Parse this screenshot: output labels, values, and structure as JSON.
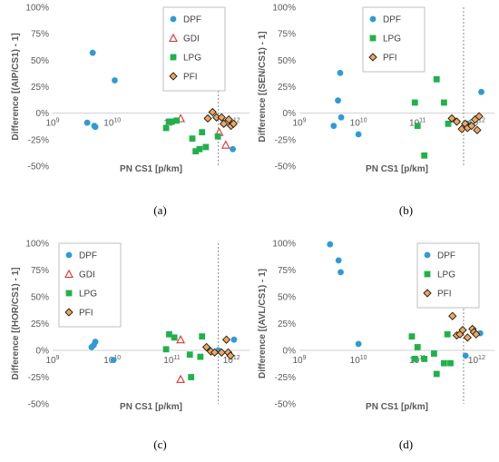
{
  "chart_data": [
    {
      "type": "scatter",
      "panel_label": "(a)",
      "xlabel": "PN CS1 [p/km]",
      "ylabel": "Difference [(AIP/CS1) - 1]",
      "xscale": "log",
      "xlim": [
        1000000000,
        2000000000000
      ],
      "ylim": [
        -0.5,
        1.0
      ],
      "yticks": [
        "100%",
        "75%",
        "50%",
        "25%",
        "0%",
        "-25%",
        "-50%"
      ],
      "xticks": [
        {
          "base": "10",
          "exp": "9"
        },
        {
          "base": "10",
          "exp": "10"
        },
        {
          "base": "10",
          "exp": "11"
        },
        {
          "base": "10",
          "exp": "12"
        }
      ],
      "vline_x": 600000000000,
      "legend_position": "top-center",
      "series": [
        {
          "name": "DPF",
          "marker": "circle",
          "color": "#2e9bd6",
          "x": [
            3800000000,
            4700000000,
            5000000000,
            5200000000,
            11000000000,
            1050000000000
          ],
          "y": [
            -0.09,
            0.57,
            -0.12,
            -0.13,
            0.31,
            -0.34
          ]
        },
        {
          "name": "GDI",
          "marker": "triangle",
          "color": "#e03030",
          "x": [
            140000000000,
            620000000000,
            800000000000
          ],
          "y": [
            -0.05,
            -0.18,
            -0.3
          ]
        },
        {
          "name": "LPG",
          "marker": "square",
          "color": "#1fb24a",
          "x": [
            80000000000,
            90000000000,
            100000000000,
            120000000000,
            220000000000,
            250000000000,
            290000000000,
            320000000000,
            370000000000,
            590000000000
          ],
          "y": [
            -0.14,
            -0.08,
            -0.08,
            -0.07,
            -0.24,
            -0.36,
            -0.34,
            -0.18,
            -0.32,
            -0.22
          ]
        },
        {
          "name": "PFI",
          "marker": "diamond",
          "color": "#7a4a12",
          "x": [
            400000000000,
            480000000000,
            560000000000,
            680000000000,
            740000000000,
            900000000000,
            980000000000,
            1080000000000
          ],
          "y": [
            -0.05,
            0.01,
            -0.04,
            -0.04,
            -0.1,
            -0.06,
            -0.12,
            -0.1
          ]
        }
      ]
    },
    {
      "type": "scatter",
      "panel_label": "(b)",
      "xlabel": "PN CS1 [p/km]",
      "ylabel": "Difference [(SEN/CS1) - 1]",
      "xscale": "log",
      "xlim": [
        1000000000,
        2000000000000
      ],
      "ylim": [
        -0.5,
        1.0
      ],
      "yticks": [
        "100%",
        "75%",
        "50%",
        "25%",
        "0%",
        "-25%",
        "-50%"
      ],
      "xticks": [
        {
          "base": "10",
          "exp": "9"
        },
        {
          "base": "10",
          "exp": "10"
        },
        {
          "base": "10",
          "exp": "11"
        },
        {
          "base": "10",
          "exp": "12"
        }
      ],
      "vline_x": 600000000000,
      "legend_position": "top-center",
      "series": [
        {
          "name": "DPF",
          "marker": "circle",
          "color": "#2e9bd6",
          "x": [
            3800000000,
            4500000000,
            4900000000,
            5100000000,
            10000000000,
            700000000000,
            800000000000,
            1200000000000
          ],
          "y": [
            -0.12,
            0.12,
            0.38,
            -0.04,
            -0.2,
            -0.1,
            -0.12,
            0.2
          ]
        },
        {
          "name": "LPG",
          "marker": "square",
          "color": "#1fb24a",
          "x": [
            90000000000,
            100000000000,
            130000000000,
            210000000000,
            280000000000,
            330000000000
          ],
          "y": [
            0.1,
            -0.12,
            -0.4,
            0.32,
            0.1,
            -0.1
          ]
        },
        {
          "name": "PFI",
          "marker": "diamond",
          "color": "#7a4a12",
          "x": [
            380000000000,
            460000000000,
            560000000000,
            640000000000,
            700000000000,
            820000000000,
            940000000000,
            1020000000000,
            1100000000000
          ],
          "y": [
            -0.05,
            -0.08,
            -0.15,
            -0.1,
            -0.14,
            -0.12,
            -0.06,
            -0.16,
            -0.03
          ]
        }
      ]
    },
    {
      "type": "scatter",
      "panel_label": "(c)",
      "xlabel": "PN CS1 [p/km]",
      "ylabel": "Difference [(HOR/CS1) - 1]",
      "xscale": "log",
      "xlim": [
        1000000000,
        2000000000000
      ],
      "ylim": [
        -0.5,
        1.0
      ],
      "yticks": [
        "100%",
        "75%",
        "50%",
        "25%",
        "0%",
        "-25%",
        "-50%"
      ],
      "xticks": [
        {
          "base": "10",
          "exp": "9"
        },
        {
          "base": "10",
          "exp": "10"
        },
        {
          "base": "10",
          "exp": "11"
        },
        {
          "base": "10",
          "exp": "12"
        }
      ],
      "vline_x": 600000000000,
      "legend_position": "top-center",
      "series": [
        {
          "name": "DPF",
          "marker": "circle",
          "color": "#2e9bd6",
          "x": [
            4500000000,
            4900000000,
            5200000000,
            10500000000,
            600000000000,
            1100000000000
          ],
          "y": [
            0.03,
            0.05,
            0.08,
            -0.09,
            0.0,
            0.1
          ]
        },
        {
          "name": "GDI",
          "marker": "triangle",
          "color": "#e03030",
          "x": [
            140000000000,
            140000000000
          ],
          "y": [
            0.1,
            -0.27
          ]
        },
        {
          "name": "LPG",
          "marker": "square",
          "color": "#1fb24a",
          "x": [
            80000000000,
            90000000000,
            110000000000,
            200000000000,
            210000000000,
            300000000000,
            320000000000
          ],
          "y": [
            0.01,
            0.15,
            0.12,
            -0.04,
            -0.25,
            -0.06,
            0.13
          ]
        },
        {
          "name": "PFI",
          "marker": "diamond",
          "color": "#7a4a12",
          "x": [
            380000000000,
            450000000000,
            520000000000,
            680000000000,
            820000000000,
            880000000000,
            960000000000
          ],
          "y": [
            0.03,
            -0.01,
            -0.02,
            -0.02,
            0.1,
            -0.02,
            -0.05
          ]
        }
      ]
    },
    {
      "type": "scatter",
      "panel_label": "(d)",
      "xlabel": "PN CS1 [p/km]",
      "ylabel": "Difference [(AVL/CS1) - 1]",
      "xscale": "log",
      "xlim": [
        1000000000,
        2000000000000
      ],
      "ylim": [
        -0.5,
        1.0
      ],
      "yticks": [
        "100%",
        "75%",
        "50%",
        "25%",
        "0%",
        "-25%",
        "-50%"
      ],
      "xticks": [
        {
          "base": "10",
          "exp": "9"
        },
        {
          "base": "10",
          "exp": "10"
        },
        {
          "base": "10",
          "exp": "11"
        },
        {
          "base": "10",
          "exp": "12"
        }
      ],
      "vline_x": 600000000000,
      "legend_position": "top-center",
      "series": [
        {
          "name": "DPF",
          "marker": "circle",
          "color": "#2e9bd6",
          "x": [
            3300000000,
            4600000000,
            5000000000,
            10000000000,
            650000000000,
            1150000000000
          ],
          "y": [
            0.99,
            0.84,
            0.73,
            0.06,
            -0.05,
            0.16
          ]
        },
        {
          "name": "LPG",
          "marker": "square",
          "color": "#1fb24a",
          "x": [
            80000000000,
            90000000000,
            100000000000,
            130000000000,
            190000000000,
            210000000000,
            280000000000,
            320000000000,
            360000000000
          ],
          "y": [
            0.13,
            -0.08,
            0.03,
            -0.08,
            -0.03,
            -0.22,
            -0.12,
            0.15,
            -0.12
          ]
        },
        {
          "name": "PFI",
          "marker": "diamond",
          "color": "#7a4a12",
          "x": [
            390000000000,
            460000000000,
            520000000000,
            580000000000,
            700000000000,
            850000000000,
            900000000000,
            980000000000
          ],
          "y": [
            0.32,
            0.14,
            0.15,
            0.19,
            0.12,
            0.2,
            0.17,
            0.15
          ]
        }
      ]
    }
  ]
}
